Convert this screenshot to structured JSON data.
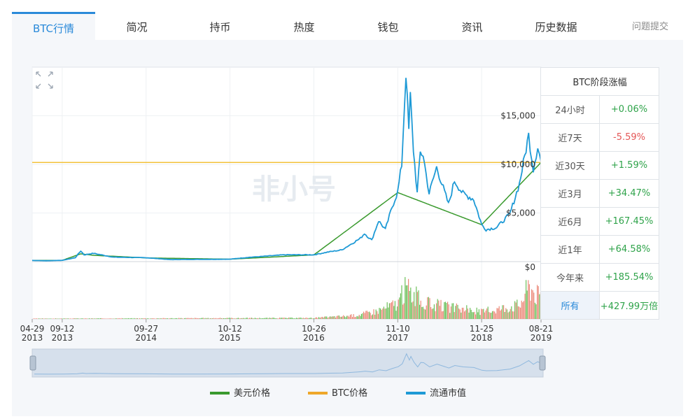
{
  "tabs": [
    {
      "label": "BTC行情",
      "active": true
    },
    {
      "label": "简况"
    },
    {
      "label": "持币"
    },
    {
      "label": "热度"
    },
    {
      "label": "钱包"
    },
    {
      "label": "资讯"
    },
    {
      "label": "历史数据"
    }
  ],
  "report_label": "问题提交",
  "watermark": "非小号",
  "price_table": {
    "title": "BTC阶段涨幅",
    "rows": [
      {
        "label": "24小时",
        "value": "+0.06%",
        "trend": "up"
      },
      {
        "label": "近7天",
        "value": "-5.59%",
        "trend": "down"
      },
      {
        "label": "近30天",
        "value": "+1.59%",
        "trend": "up"
      },
      {
        "label": "近3月",
        "value": "+34.47%",
        "trend": "up"
      },
      {
        "label": "近6月",
        "value": "+167.45%",
        "trend": "up"
      },
      {
        "label": "近1年",
        "value": "+64.58%",
        "trend": "up"
      },
      {
        "label": "今年来",
        "value": "+185.54%",
        "trend": "up"
      },
      {
        "label": "所有",
        "value": "+427.99万倍",
        "trend": "up",
        "selected": true
      }
    ]
  },
  "legend": [
    {
      "name": "美元价格",
      "color": "#3a9a2e"
    },
    {
      "name": "BTC价格",
      "color": "#eea72a"
    },
    {
      "name": "流通市值",
      "color": "#1e9ad6"
    }
  ],
  "colors": {
    "accent": "#2a8ad9",
    "line": "#1e9ad6",
    "line_secondary": "#3a9a2e",
    "reference": "#f3c23a",
    "volume_up": "#6cc05a",
    "volume_down": "#ec8a7a"
  },
  "icons": {
    "zoom": "fullscreen-expand-icon"
  },
  "chart_data": {
    "type": "line",
    "x_dates": [
      "2013-04-29",
      "2013-09-12",
      "2014-09-27",
      "2015-10-12",
      "2016-10-26",
      "2017-11-10",
      "2018-11-25",
      "2019-08-21"
    ],
    "x_tick_labels": [
      {
        "top": "04-29",
        "bottom": "2013"
      },
      {
        "top": "09-12",
        "bottom": "2013"
      },
      {
        "top": "09-27",
        "bottom": "2014"
      },
      {
        "top": "10-12",
        "bottom": "2015"
      },
      {
        "top": "10-26",
        "bottom": "2016"
      },
      {
        "top": "11-10",
        "bottom": "2017"
      },
      {
        "top": "11-25",
        "bottom": "2018"
      },
      {
        "top": "08-21",
        "bottom": "2019"
      }
    ],
    "y_ticks": [
      "$5,000",
      "$10,000",
      "$15,000",
      "$0"
    ],
    "y_tick_values": [
      5000,
      10000,
      15000,
      0
    ],
    "ylim": [
      0,
      20000
    ],
    "reference_value": 10200,
    "series": [
      {
        "points": [
          [
            "2013-04-29",
            120
          ],
          [
            "2013-07-01",
            90
          ],
          [
            "2013-09-12",
            130
          ],
          [
            "2013-11-10",
            400
          ],
          [
            "2013-12-05",
            1100
          ],
          [
            "2013-12-20",
            700
          ],
          [
            "2014-02-01",
            850
          ],
          [
            "2014-05-01",
            460
          ],
          [
            "2014-09-27",
            400
          ],
          [
            "2015-01-15",
            210
          ],
          [
            "2015-06-01",
            230
          ],
          [
            "2015-10-12",
            250
          ],
          [
            "2016-01-01",
            430
          ],
          [
            "2016-06-15",
            700
          ],
          [
            "2016-10-26",
            700
          ],
          [
            "2017-01-01",
            1000
          ],
          [
            "2017-03-01",
            1200
          ],
          [
            "2017-05-25",
            2400
          ],
          [
            "2017-06-12",
            2900
          ],
          [
            "2017-07-15",
            2200
          ],
          [
            "2017-08-15",
            4200
          ],
          [
            "2017-09-15",
            3300
          ],
          [
            "2017-10-15",
            5600
          ],
          [
            "2017-11-10",
            7200
          ],
          [
            "2017-11-28",
            10000
          ],
          [
            "2017-12-17",
            19500
          ],
          [
            "2017-12-30",
            13500
          ],
          [
            "2018-01-06",
            17000
          ],
          [
            "2018-01-20",
            11500
          ],
          [
            "2018-02-06",
            7000
          ],
          [
            "2018-02-20",
            11200
          ],
          [
            "2018-03-05",
            11000
          ],
          [
            "2018-04-01",
            7000
          ],
          [
            "2018-05-05",
            9700
          ],
          [
            "2018-06-28",
            5900
          ],
          [
            "2018-07-25",
            8300
          ],
          [
            "2018-09-01",
            7000
          ],
          [
            "2018-10-20",
            6400
          ],
          [
            "2018-11-25",
            3800
          ],
          [
            "2018-12-15",
            3300
          ],
          [
            "2019-02-01",
            3500
          ],
          [
            "2019-04-02",
            4900
          ],
          [
            "2019-05-15",
            8000
          ],
          [
            "2019-06-26",
            13000
          ],
          [
            "2019-07-17",
            9500
          ],
          [
            "2019-08-06",
            11900
          ],
          [
            "2019-08-21",
            10300
          ]
        ]
      },
      {
        "points": [
          [
            "2013-04-29",
            120
          ],
          [
            "2013-09-12",
            130
          ],
          [
            "2013-12-05",
            800
          ],
          [
            "2014-02-01",
            650
          ],
          [
            "2014-09-27",
            380
          ],
          [
            "2015-10-12",
            250
          ],
          [
            "2016-10-26",
            690
          ],
          [
            "2017-11-10",
            7100
          ],
          [
            "2018-11-25",
            3800
          ],
          [
            "2019-08-21",
            10200
          ]
        ]
      }
    ],
    "volume": {
      "note": "relative trading volume, 0-1 scale",
      "points": [
        [
          "2013-04-29",
          0.01
        ],
        [
          "2016-10-26",
          0.03
        ],
        [
          "2017-05-01",
          0.1
        ],
        [
          "2017-08-01",
          0.22
        ],
        [
          "2017-11-10",
          0.45
        ],
        [
          "2017-12-17",
          0.9
        ],
        [
          "2018-01-06",
          0.75
        ],
        [
          "2018-03-01",
          0.45
        ],
        [
          "2018-06-01",
          0.35
        ],
        [
          "2018-11-25",
          0.2
        ],
        [
          "2019-05-15",
          0.4
        ],
        [
          "2019-06-26",
          0.95
        ],
        [
          "2019-08-21",
          0.55
        ]
      ]
    },
    "grid": true
  }
}
